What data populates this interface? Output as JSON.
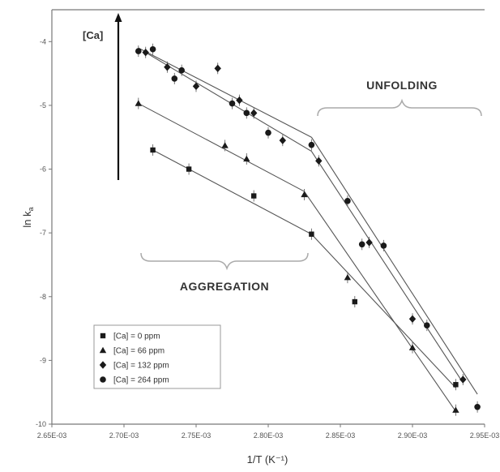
{
  "chart_data": {
    "type": "scatter",
    "xlabel": "1/T (K⁻¹)",
    "ylabel": "ln k",
    "ylabel_sub": "a",
    "xlim": [
      0.00265,
      0.00295
    ],
    "ylim": [
      -10,
      -3.5
    ],
    "x_ticks": [
      0.00265,
      0.0027,
      0.00275,
      0.0028,
      0.00285,
      0.0029,
      0.00295
    ],
    "x_tick_labels": [
      "2.65E-03",
      "2.70E-03",
      "2.75E-03",
      "2.80E-03",
      "2.85E-03",
      "2.90E-03",
      "2.95E-03"
    ],
    "y_ticks": [
      -4,
      -5,
      -6,
      -7,
      -8,
      -9,
      -10
    ],
    "y_tick_labels": [
      "-4",
      "-5",
      "-6",
      "-7",
      "-8",
      "-9",
      "-10"
    ],
    "grid": false,
    "legend_position": "bottom-left",
    "annotations": {
      "unfolding": "UNFOLDING",
      "aggregation": "AGGREGATION",
      "ca_arrow": "[Ca]"
    },
    "series": [
      {
        "name": "[Ca] = 0 ppm",
        "marker": "square",
        "points": [
          [
            0.00272,
            -5.7
          ],
          [
            0.002745,
            -6.0
          ],
          [
            0.00279,
            -6.42
          ],
          [
            0.00283,
            -7.02
          ],
          [
            0.00286,
            -8.08
          ],
          [
            0.00293,
            -9.38
          ]
        ],
        "fit_lines": [
          [
            [
              0.00272,
              -5.7
            ],
            [
              0.00283,
              -7.02
            ]
          ],
          [
            [
              0.00283,
              -7.02
            ],
            [
              0.00293,
              -9.43
            ]
          ]
        ]
      },
      {
        "name": "[Ca] = 66 ppm",
        "marker": "triangle",
        "points": [
          [
            0.00271,
            -4.97
          ],
          [
            0.00277,
            -5.63
          ],
          [
            0.002785,
            -5.84
          ],
          [
            0.002825,
            -6.4
          ],
          [
            0.002855,
            -7.7
          ],
          [
            0.0029,
            -8.8
          ],
          [
            0.00293,
            -9.78
          ]
        ],
        "fit_lines": [
          [
            [
              0.00271,
              -4.97
            ],
            [
              0.002825,
              -6.35
            ]
          ],
          [
            [
              0.002825,
              -6.35
            ],
            [
              0.00293,
              -9.8
            ]
          ]
        ]
      },
      {
        "name": "[Ca] = 132 ppm",
        "marker": "diamond",
        "points": [
          [
            0.002715,
            -4.17
          ],
          [
            0.00273,
            -4.4
          ],
          [
            0.00275,
            -4.7
          ],
          [
            0.002765,
            -4.42
          ],
          [
            0.00278,
            -4.92
          ],
          [
            0.00279,
            -5.12
          ],
          [
            0.00281,
            -5.55
          ],
          [
            0.002835,
            -5.87
          ],
          [
            0.00287,
            -7.15
          ],
          [
            0.0029,
            -8.35
          ],
          [
            0.002935,
            -9.3
          ]
        ],
        "fit_lines": [
          [
            [
              0.002715,
              -4.17
            ],
            [
              0.00283,
              -5.72
            ]
          ],
          [
            [
              0.00283,
              -5.72
            ],
            [
              0.002935,
              -9.35
            ]
          ]
        ]
      },
      {
        "name": "[Ca] = 264 ppm",
        "marker": "circle",
        "points": [
          [
            0.00271,
            -4.15
          ],
          [
            0.00272,
            -4.12
          ],
          [
            0.002735,
            -4.58
          ],
          [
            0.00274,
            -4.45
          ],
          [
            0.002775,
            -4.97
          ],
          [
            0.002785,
            -5.12
          ],
          [
            0.0028,
            -5.43
          ],
          [
            0.00283,
            -5.62
          ],
          [
            0.002855,
            -6.5
          ],
          [
            0.002865,
            -7.18
          ],
          [
            0.00288,
            -7.2
          ],
          [
            0.00291,
            -8.45
          ],
          [
            0.002945,
            -9.73
          ]
        ],
        "fit_lines": [
          [
            [
              0.00271,
              -4.1
            ],
            [
              0.00283,
              -5.5
            ]
          ],
          [
            [
              0.00283,
              -5.5
            ],
            [
              0.002945,
              -9.53
            ]
          ]
        ]
      }
    ]
  }
}
